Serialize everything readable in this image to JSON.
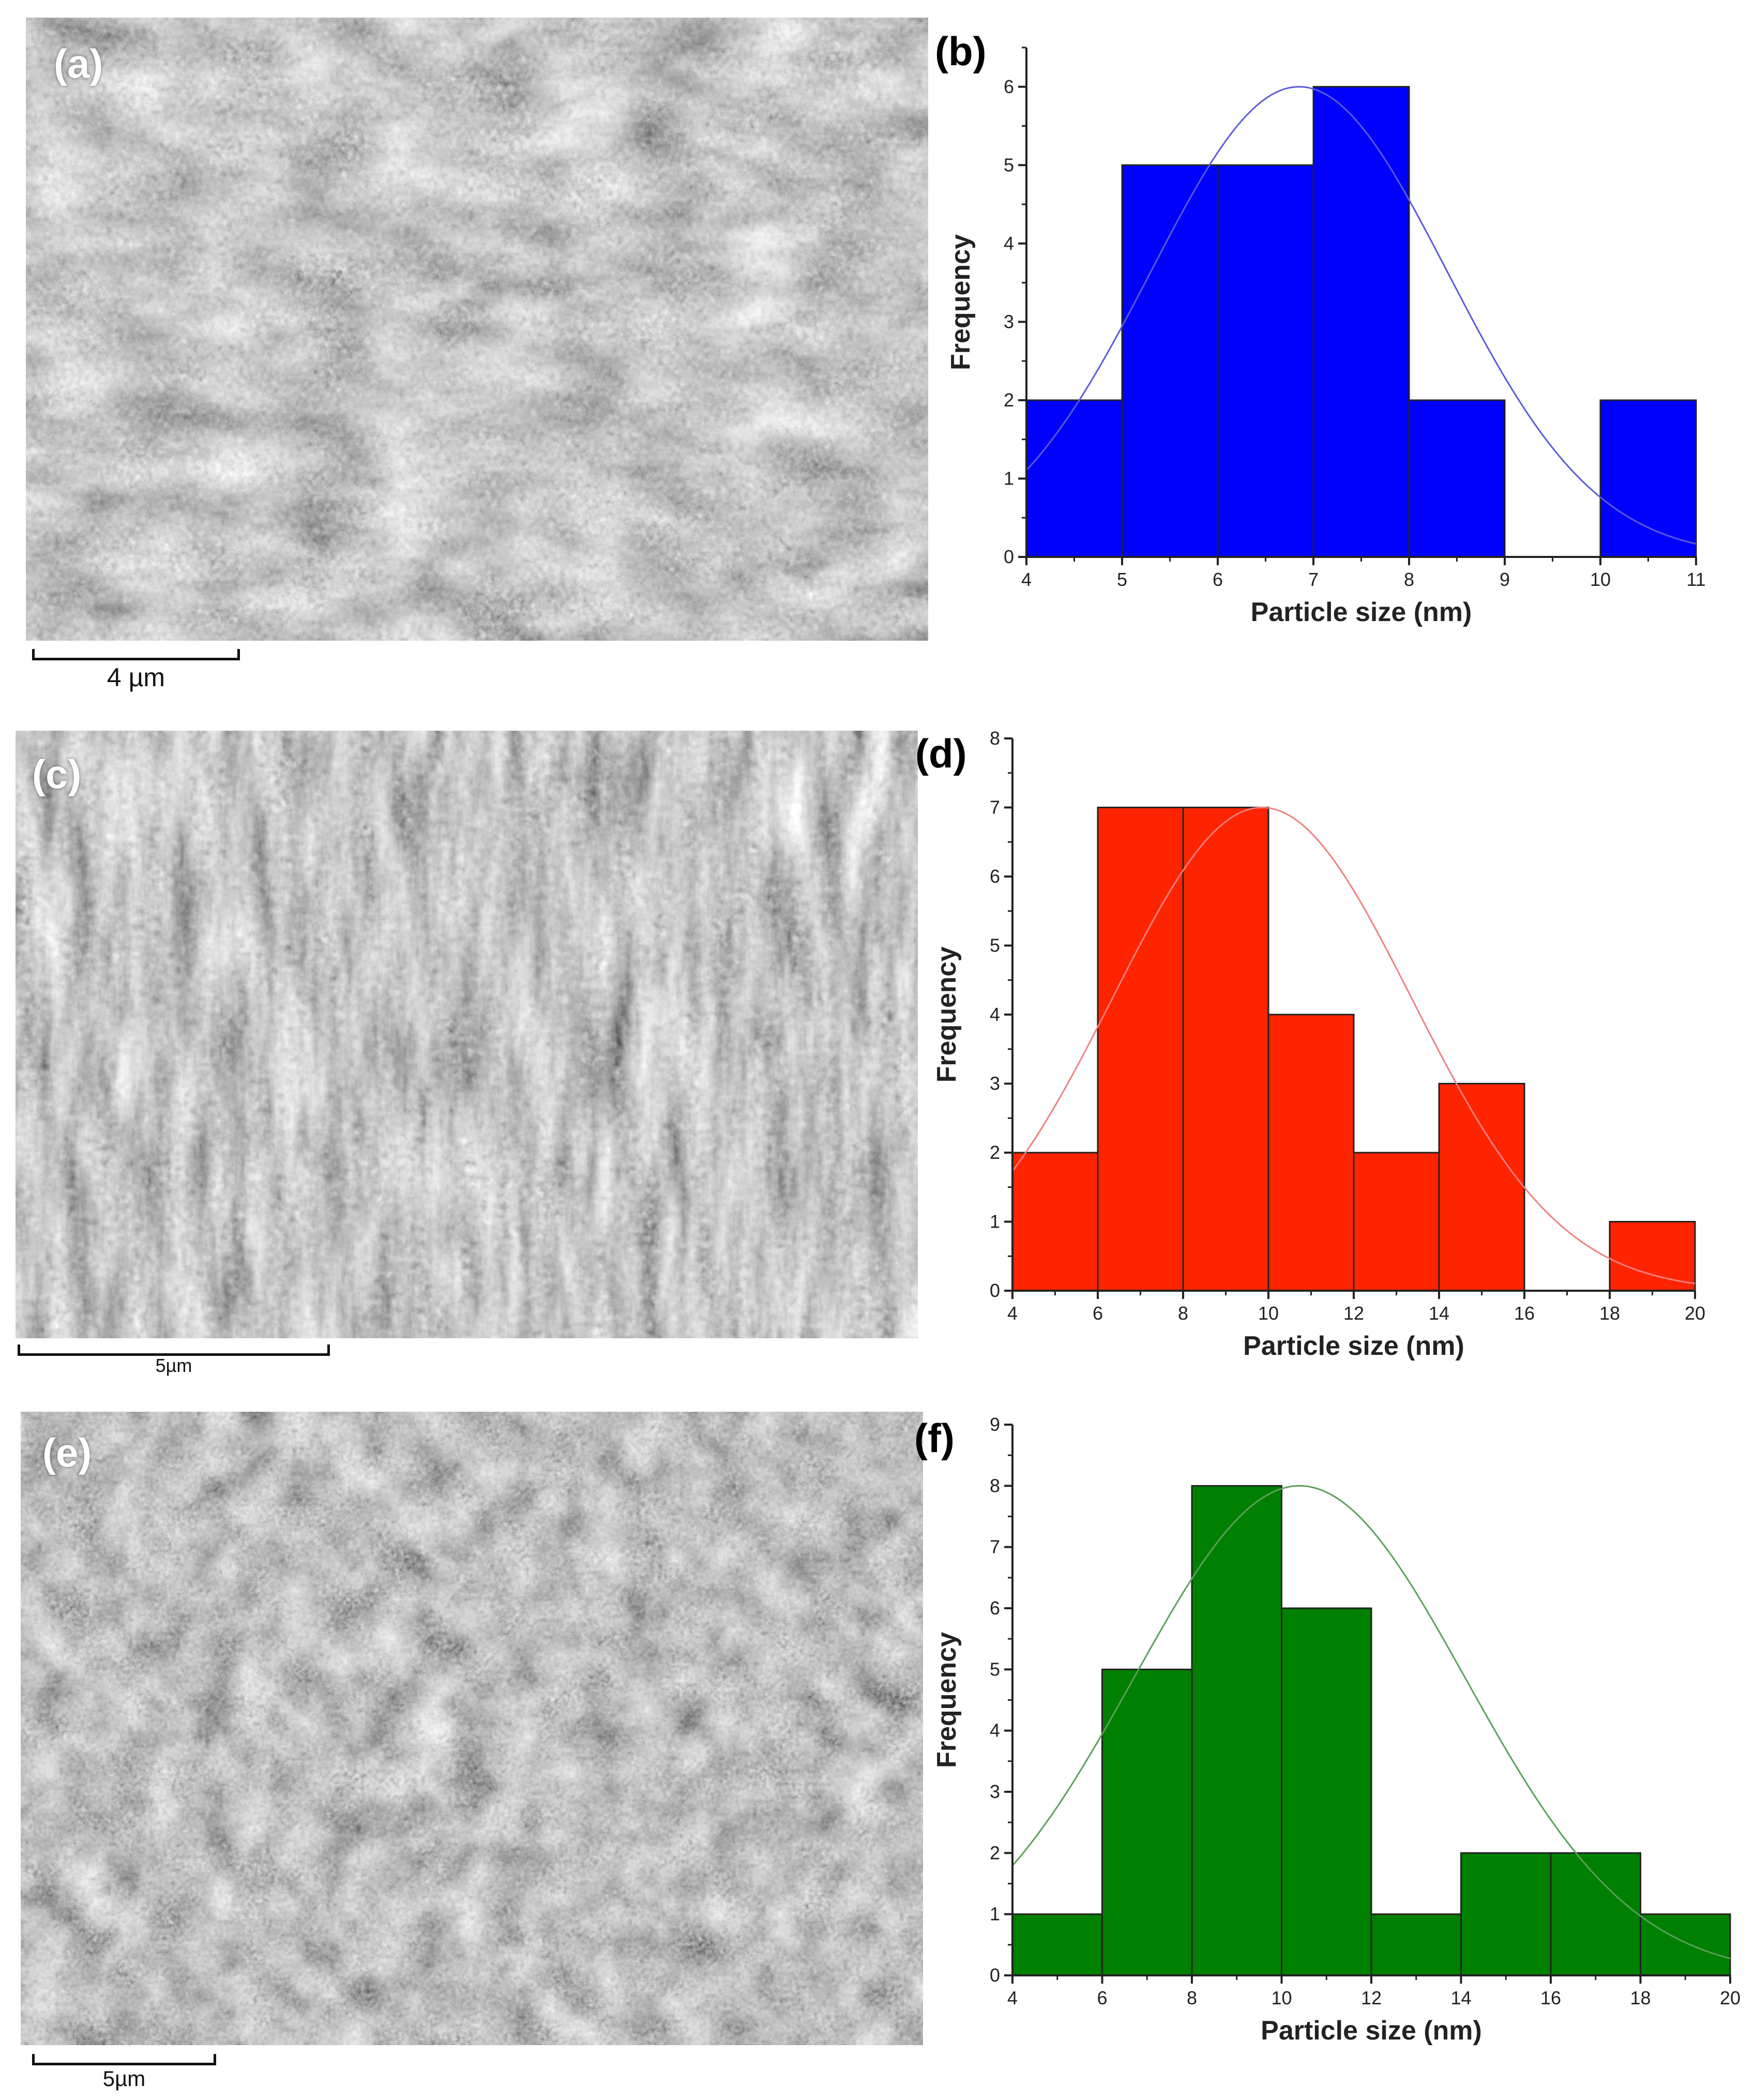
{
  "panels": {
    "a": {
      "label": "(a)",
      "scale_text": "4 µm"
    },
    "b": {
      "label": "(b)"
    },
    "c": {
      "label": "(c)",
      "scale_text": "5µm"
    },
    "d": {
      "label": "(d)"
    },
    "e": {
      "label": "(e)",
      "scale_text": "5µm"
    },
    "f": {
      "label": "(f)"
    }
  },
  "chart_data": [
    {
      "type": "bar",
      "panel": "(b)",
      "xlabel": "Particle size (nm)",
      "ylabel": "Frequency",
      "x_ticks": [
        "4",
        "5",
        "6",
        "7",
        "8",
        "9",
        "10",
        "11"
      ],
      "y_ticks": [
        "0",
        "1",
        "2",
        "3",
        "4",
        "5",
        "6"
      ],
      "xlim": [
        4,
        11
      ],
      "ylim": [
        0,
        6.5
      ],
      "bins": [
        [
          4,
          5
        ],
        [
          5,
          6
        ],
        [
          6,
          7
        ],
        [
          7,
          8
        ],
        [
          8,
          9
        ],
        [
          9,
          10
        ],
        [
          10,
          11
        ]
      ],
      "values": [
        2,
        5,
        5,
        6,
        2,
        0,
        2
      ],
      "color": "#0000ff",
      "fit_curve": {
        "type": "gaussian",
        "mean": 6.85,
        "sigma": 1.55,
        "peak": 6,
        "color": "#5a5adc"
      }
    },
    {
      "type": "bar",
      "panel": "(d)",
      "xlabel": "Particle size (nm)",
      "ylabel": "Frequency",
      "x_ticks": [
        "4",
        "6",
        "8",
        "10",
        "12",
        "14",
        "16",
        "18",
        "20"
      ],
      "y_ticks": [
        "0",
        "1",
        "2",
        "3",
        "4",
        "5",
        "6",
        "7",
        "8"
      ],
      "xlim": [
        4,
        20
      ],
      "ylim": [
        0,
        8
      ],
      "bins": [
        [
          4,
          6
        ],
        [
          6,
          8
        ],
        [
          8,
          10
        ],
        [
          10,
          12
        ],
        [
          12,
          14
        ],
        [
          14,
          16
        ],
        [
          16,
          18
        ],
        [
          18,
          20
        ]
      ],
      "values": [
        2,
        7,
        7,
        4,
        2,
        3,
        0,
        1
      ],
      "color": "#ff2400",
      "fit_curve": {
        "type": "gaussian",
        "mean": 9.85,
        "sigma": 3.5,
        "peak": 7,
        "color": "#f08080"
      }
    },
    {
      "type": "bar",
      "panel": "(f)",
      "xlabel": "Particle size (nm)",
      "ylabel": "Frequency",
      "x_ticks": [
        "4",
        "6",
        "8",
        "10",
        "12",
        "14",
        "16",
        "18",
        "20"
      ],
      "y_ticks": [
        "0",
        "1",
        "2",
        "3",
        "4",
        "5",
        "6",
        "7",
        "8",
        "9"
      ],
      "xlim": [
        4,
        20
      ],
      "ylim": [
        0,
        9
      ],
      "bins": [
        [
          4,
          6
        ],
        [
          6,
          8
        ],
        [
          8,
          10
        ],
        [
          10,
          12
        ],
        [
          12,
          14
        ],
        [
          14,
          16
        ],
        [
          16,
          18
        ],
        [
          18,
          20
        ]
      ],
      "values": [
        1,
        5,
        8,
        6,
        1,
        2,
        2,
        1
      ],
      "color": "#008000",
      "fit_curve": {
        "type": "gaussian",
        "mean": 10.4,
        "sigma": 3.7,
        "peak": 8,
        "color": "#5aa05a"
      }
    }
  ]
}
